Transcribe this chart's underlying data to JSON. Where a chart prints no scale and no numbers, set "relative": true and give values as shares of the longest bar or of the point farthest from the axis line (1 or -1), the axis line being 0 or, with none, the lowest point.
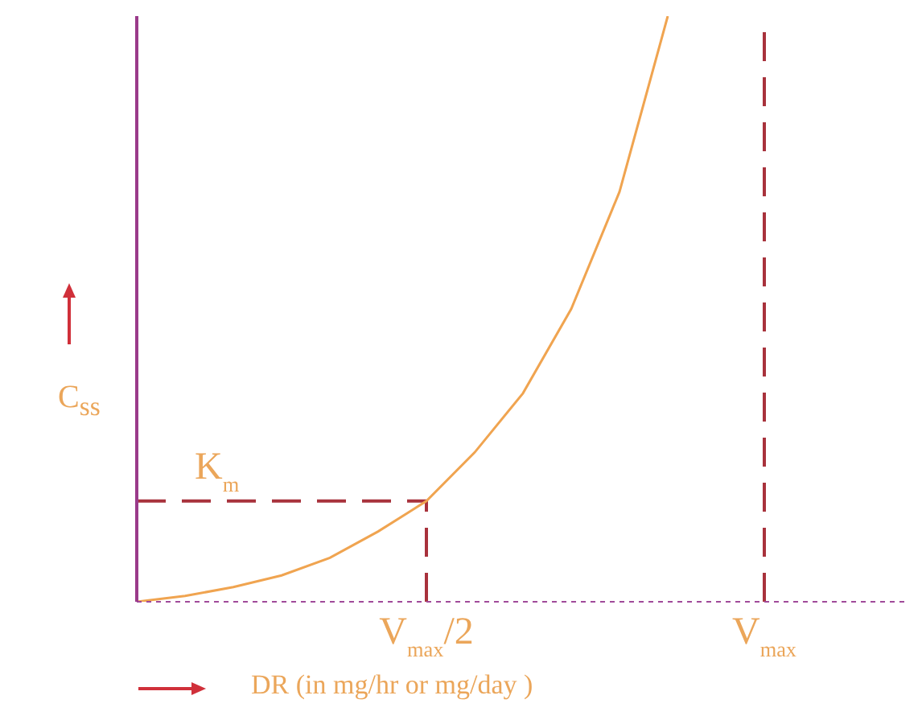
{
  "chart_data": {
    "type": "line",
    "relative": true,
    "xlabel": "DR (in mg/hr or mg/day )",
    "ylabel": "C$_{ss}$",
    "categories": [
      null,
      null,
      null,
      null,
      null,
      null,
      "V$_{max}$/2",
      null,
      null,
      null,
      null,
      null,
      null,
      "V$_{max}$",
      null,
      null,
      null
    ],
    "series": [
      {
        "color": "#f0a450",
        "values": [
          0,
          0.01,
          0.025,
          0.045,
          0.075,
          0.12,
          0.172,
          0.255,
          0.356,
          0.5,
          0.7,
          1,
          null,
          null,
          null,
          null,
          null
        ]
      }
    ],
    "ref_lines": [
      {
        "axis": "y",
        "value": 0.172,
        "label": "K$_{m}$",
        "color": "#a8323c",
        "line_style": "dashed"
      },
      {
        "axis": "x",
        "value": "V$_{max}$/2",
        "color": "#a8323c",
        "line_style": "dashed"
      },
      {
        "axis": "x",
        "value": "V$_{max}$",
        "color": "#a8323c",
        "line_style": "dashed"
      }
    ]
  }
}
